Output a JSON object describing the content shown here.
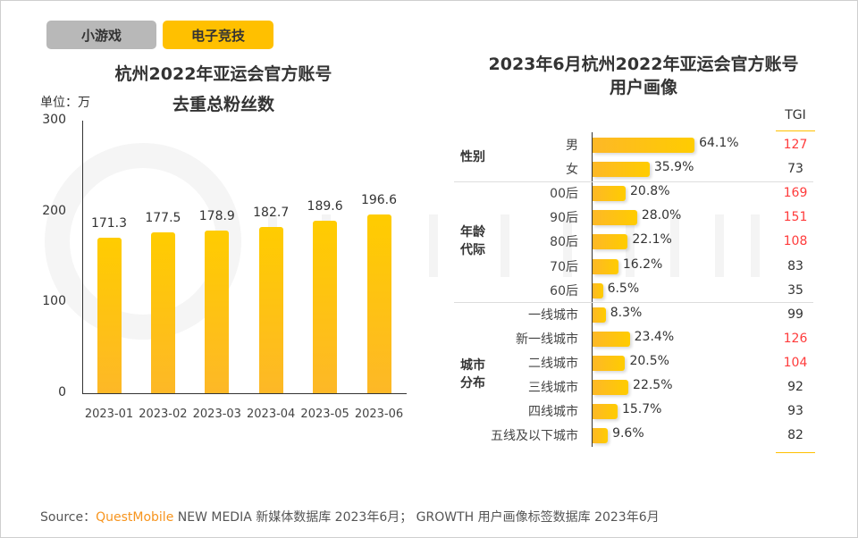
{
  "tabs": [
    {
      "label": "小游戏",
      "active": false,
      "color": "#b8b8b8"
    },
    {
      "label": "电子竞技",
      "active": true,
      "color": "#ffc000"
    }
  ],
  "watermark": "QUEST MOBILE",
  "chart_data": [
    {
      "type": "bar",
      "title_line1": "杭州2022年亚运会官方账号",
      "title_line2": "去重总粉丝数",
      "unit": "单位：万",
      "categories": [
        "2023-01",
        "2023-02",
        "2023-03",
        "2023-04",
        "2023-05",
        "2023-06"
      ],
      "values": [
        171.3,
        177.5,
        178.9,
        182.7,
        189.6,
        196.6
      ],
      "yticks": [
        "0",
        "100",
        "200",
        "300"
      ],
      "ylim": [
        0,
        300
      ],
      "color": "#ffc000"
    },
    {
      "type": "bar",
      "orientation": "horizontal",
      "title_line1": "2023年6月杭州2022年亚运会官方账号",
      "title_line2": "用户画像",
      "tgi_header": "TGI",
      "groups": [
        {
          "label_line1": "性别",
          "label_line2": "",
          "items": [
            {
              "label": "男",
              "value": 64.1,
              "value_label": "64.1%",
              "tgi": "127",
              "tgi_high": true
            },
            {
              "label": "女",
              "value": 35.9,
              "value_label": "35.9%",
              "tgi": "73",
              "tgi_high": false
            }
          ]
        },
        {
          "label_line1": "年龄",
          "label_line2": "代际",
          "items": [
            {
              "label": "00后",
              "value": 20.8,
              "value_label": "20.8%",
              "tgi": "169",
              "tgi_high": true
            },
            {
              "label": "90后",
              "value": 28.0,
              "value_label": "28.0%",
              "tgi": "151",
              "tgi_high": true
            },
            {
              "label": "80后",
              "value": 22.1,
              "value_label": "22.1%",
              "tgi": "108",
              "tgi_high": true
            },
            {
              "label": "70后",
              "value": 16.2,
              "value_label": "16.2%",
              "tgi": "83",
              "tgi_high": false
            },
            {
              "label": "60后",
              "value": 6.5,
              "value_label": "6.5%",
              "tgi": "35",
              "tgi_high": false
            }
          ]
        },
        {
          "label_line1": "城市",
          "label_line2": "分布",
          "items": [
            {
              "label": "一线城市",
              "value": 8.3,
              "value_label": "8.3%",
              "tgi": "99",
              "tgi_high": false
            },
            {
              "label": "新一线城市",
              "value": 23.4,
              "value_label": "23.4%",
              "tgi": "126",
              "tgi_high": true
            },
            {
              "label": "二线城市",
              "value": 20.5,
              "value_label": "20.5%",
              "tgi": "104",
              "tgi_high": true
            },
            {
              "label": "三线城市",
              "value": 22.5,
              "value_label": "22.5%",
              "tgi": "92",
              "tgi_high": false
            },
            {
              "label": "四线城市",
              "value": 15.7,
              "value_label": "15.7%",
              "tgi": "93",
              "tgi_high": false
            },
            {
              "label": "五线及以下城市",
              "value": 9.6,
              "value_label": "9.6%",
              "tgi": "82",
              "tgi_high": false
            }
          ]
        }
      ],
      "tgi_high_color": "#ff3b3b"
    }
  ],
  "source": {
    "prefix": "Source：",
    "brand": "QuestMobile",
    "text": " NEW MEDIA 新媒体数据库 2023年6月； GROWTH 用户画像标签数据库 2023年6月",
    "brand_color": "#f7941d"
  }
}
